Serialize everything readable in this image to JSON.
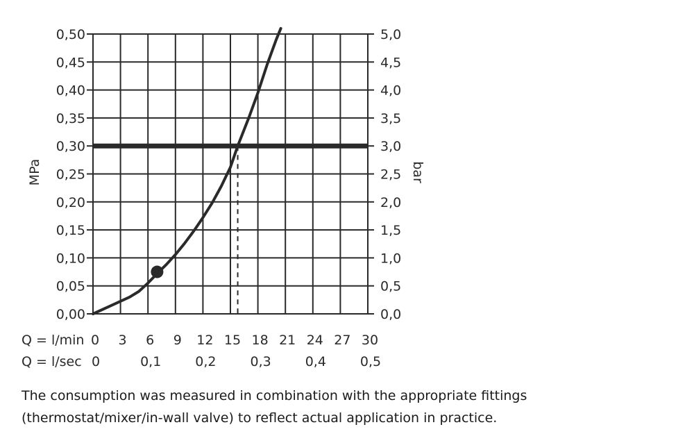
{
  "chart_data": {
    "type": "line",
    "title": "",
    "left_axis": {
      "label": "MPa",
      "range": [
        0,
        0.5
      ],
      "ticks": [
        0.0,
        0.05,
        0.1,
        0.15,
        0.2,
        0.25,
        0.3,
        0.35,
        0.4,
        0.45,
        0.5
      ],
      "tick_labels": [
        "0,00",
        "0,05",
        "0,10",
        "0,15",
        "0,20",
        "0,25",
        "0,30",
        "0,35",
        "0,40",
        "0,45",
        "0,50"
      ]
    },
    "right_axis": {
      "label": "bar",
      "range": [
        0,
        5
      ],
      "tick_labels": [
        "0,0",
        "0,5",
        "1,0",
        "1,5",
        "2,0",
        "2,5",
        "3,0",
        "3,5",
        "4,0",
        "4,5",
        "5,0"
      ]
    },
    "x_axis": {
      "range": [
        0,
        30
      ],
      "row1_prefix": "Q = l/min",
      "row1_ticks": [
        0,
        3,
        6,
        9,
        12,
        15,
        18,
        21,
        24,
        27,
        30
      ],
      "row1_labels": [
        "0",
        "3",
        "6",
        "9",
        "12",
        "15",
        "18",
        "21",
        "24",
        "27",
        "30"
      ],
      "row2_prefix": "Q = l/sec",
      "row2_ticks": [
        0,
        6,
        12,
        18,
        24,
        30
      ],
      "row2_labels": [
        "0",
        "0,1",
        "0,2",
        "0,3",
        "0,4",
        "0,5"
      ]
    },
    "grid": true,
    "series": [
      {
        "x": [
          0,
          2,
          4,
          5,
          6,
          7,
          8,
          9,
          10,
          11,
          12,
          13,
          14,
          15,
          15.8,
          17,
          18,
          19,
          20,
          20.5
        ],
        "y": [
          0,
          0.015,
          0.03,
          0.04,
          0.055,
          0.072,
          0.088,
          0.106,
          0.126,
          0.148,
          0.172,
          0.198,
          0.228,
          0.262,
          0.3,
          0.35,
          0.395,
          0.445,
          0.49,
          0.51
        ]
      }
    ],
    "reference_line": {
      "y": 0.3
    },
    "reference_point": {
      "x": 15.8,
      "y": 0.3
    },
    "marker": {
      "x": 7,
      "y": 0.075
    },
    "colors": {
      "line": "#2a2a2a",
      "grid": "#2a2a2a",
      "reference": "#2a2a2a"
    }
  },
  "caption": "The consumption was measured in combination with the appropriate fittings (thermostat/mixer/in-wall valve) to reflect actual application in practice."
}
